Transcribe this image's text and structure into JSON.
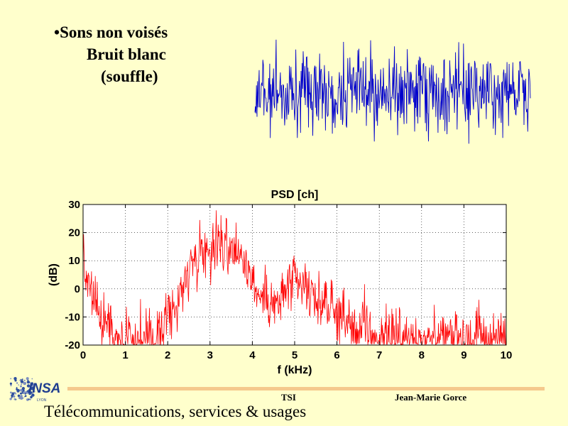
{
  "slide": {
    "bullet_marker": "•",
    "bullet_line1": "Sons non voisés",
    "bullet_line2": "Bruit blanc",
    "bullet_line3": "(souffle)"
  },
  "waveform": {
    "color": "#0000CC",
    "description_color": "#0000CC"
  },
  "chart_data": {
    "type": "line",
    "title": "PSD [ch]",
    "xlabel": "f (kHz)",
    "ylabel": "(dB)",
    "xlim": [
      0,
      10
    ],
    "ylim": [
      -20,
      30
    ],
    "xticks": [
      "0",
      "1",
      "2",
      "3",
      "4",
      "5",
      "6",
      "7",
      "8",
      "9",
      "10"
    ],
    "yticks": [
      "30",
      "20",
      "10",
      "0",
      "-10",
      "-20"
    ],
    "grid": true,
    "series_color": "#FF0000",
    "envelope": [
      [
        0.0,
        15
      ],
      [
        0.05,
        5
      ],
      [
        0.15,
        2
      ],
      [
        0.3,
        -8
      ],
      [
        0.5,
        -12
      ],
      [
        0.7,
        -16
      ],
      [
        0.9,
        -18
      ],
      [
        1.2,
        -19
      ],
      [
        1.5,
        -19
      ],
      [
        1.8,
        -17
      ],
      [
        2.0,
        -12
      ],
      [
        2.2,
        -8
      ],
      [
        2.4,
        2
      ],
      [
        2.6,
        10
      ],
      [
        2.8,
        13
      ],
      [
        3.0,
        14
      ],
      [
        3.2,
        15
      ],
      [
        3.4,
        14
      ],
      [
        3.6,
        13
      ],
      [
        3.8,
        10
      ],
      [
        4.0,
        4
      ],
      [
        4.2,
        -3
      ],
      [
        4.4,
        -6
      ],
      [
        4.6,
        -5
      ],
      [
        4.8,
        -1
      ],
      [
        5.0,
        2
      ],
      [
        5.2,
        0
      ],
      [
        5.4,
        -3
      ],
      [
        5.6,
        -5
      ],
      [
        5.8,
        -6
      ],
      [
        6.0,
        -9
      ],
      [
        6.2,
        -12
      ],
      [
        6.4,
        -14
      ],
      [
        6.6,
        -15
      ],
      [
        7.0,
        -17
      ],
      [
        7.5,
        -18
      ],
      [
        8.0,
        -18
      ],
      [
        8.5,
        -18
      ],
      [
        9.0,
        -18
      ],
      [
        9.5,
        -18
      ],
      [
        10.0,
        -18
      ]
    ]
  },
  "footer": {
    "logo_text": "INSA",
    "logo_subtext": "LYON",
    "course": "TSI",
    "author": "Jean-Marie Gorce",
    "title": "Télécommunications, services & usages",
    "line_color": "#F5C98C"
  }
}
